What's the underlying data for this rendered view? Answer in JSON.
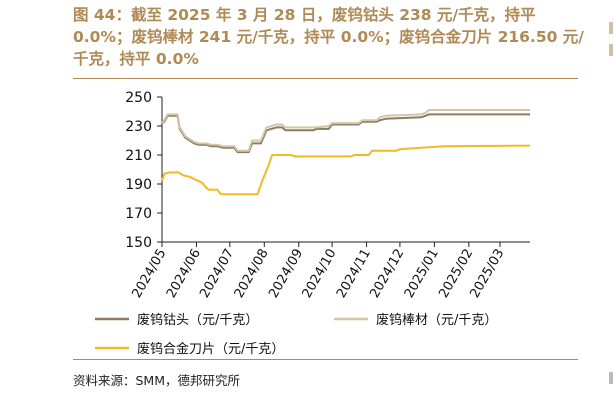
{
  "figure": {
    "title": "图 44：截至 2025 年 3 月 28 日，废钨钴头 238 元/千克，持平 0.0%；废钨棒材 241 元/千克，持平 0.0%；废钨合金刀片 216.50 元/千克，持平 0.0%",
    "source": "资料来源：SMM，德邦研究所"
  },
  "chart_data": {
    "type": "line",
    "title": "",
    "xlabel": "",
    "ylabel": "",
    "ylim": [
      150,
      250
    ],
    "yticks": [
      150,
      170,
      190,
      210,
      230,
      250
    ],
    "x_range": [
      "2024-05-01",
      "2025-03-28"
    ],
    "xtick_labels": [
      "2024/05",
      "2024/06",
      "2024/07",
      "2024/08",
      "2024/09",
      "2024/10",
      "2024/11",
      "2024/12",
      "2025/01",
      "2025/02",
      "2025/03"
    ],
    "xtick_dates": [
      "2024-05-01",
      "2024-06-01",
      "2024-07-01",
      "2024-08-01",
      "2024-09-01",
      "2024-10-01",
      "2024-11-01",
      "2024-12-01",
      "2025-01-01",
      "2025-02-01",
      "2025-03-01"
    ],
    "grid": false,
    "legend_position": "bottom",
    "series": [
      {
        "name": "废钨钴头（元/千克）",
        "color": "#8c7a63",
        "points": [
          [
            "2024-05-01",
            232
          ],
          [
            "2024-05-03",
            233
          ],
          [
            "2024-05-06",
            237
          ],
          [
            "2024-05-15",
            237
          ],
          [
            "2024-05-17",
            228
          ],
          [
            "2024-05-22",
            222
          ],
          [
            "2024-05-26",
            220
          ],
          [
            "2024-05-30",
            218
          ],
          [
            "2024-06-03",
            217
          ],
          [
            "2024-06-10",
            217
          ],
          [
            "2024-06-14",
            216
          ],
          [
            "2024-06-20",
            216
          ],
          [
            "2024-06-25",
            215
          ],
          [
            "2024-07-05",
            215
          ],
          [
            "2024-07-08",
            212
          ],
          [
            "2024-07-18",
            212
          ],
          [
            "2024-07-21",
            218
          ],
          [
            "2024-07-29",
            218
          ],
          [
            "2024-08-03",
            227
          ],
          [
            "2024-08-12",
            229
          ],
          [
            "2024-08-17",
            229
          ],
          [
            "2024-08-20",
            227
          ],
          [
            "2024-09-14",
            227
          ],
          [
            "2024-09-17",
            228
          ],
          [
            "2024-09-28",
            228
          ],
          [
            "2024-10-01",
            231
          ],
          [
            "2024-10-25",
            231
          ],
          [
            "2024-10-28",
            233
          ],
          [
            "2024-11-10",
            233
          ],
          [
            "2024-11-13",
            234
          ],
          [
            "2024-11-18",
            235
          ],
          [
            "2024-12-20",
            236
          ],
          [
            "2024-12-24",
            237
          ],
          [
            "2024-12-27",
            238
          ],
          [
            "2025-03-28",
            238
          ]
        ]
      },
      {
        "name": "废钨棒材（元/千克）",
        "color": "#d3c6a6",
        "points": [
          [
            "2024-05-01",
            232
          ],
          [
            "2024-05-03",
            234
          ],
          [
            "2024-05-06",
            238
          ],
          [
            "2024-05-15",
            238
          ],
          [
            "2024-05-17",
            229
          ],
          [
            "2024-05-22",
            223
          ],
          [
            "2024-05-26",
            221
          ],
          [
            "2024-05-30",
            219
          ],
          [
            "2024-06-03",
            218
          ],
          [
            "2024-06-10",
            218
          ],
          [
            "2024-06-14",
            217
          ],
          [
            "2024-06-20",
            217
          ],
          [
            "2024-06-25",
            216
          ],
          [
            "2024-07-05",
            216
          ],
          [
            "2024-07-08",
            213
          ],
          [
            "2024-07-18",
            213
          ],
          [
            "2024-07-21",
            220
          ],
          [
            "2024-07-29",
            220
          ],
          [
            "2024-08-03",
            229
          ],
          [
            "2024-08-12",
            231
          ],
          [
            "2024-08-17",
            231
          ],
          [
            "2024-08-20",
            229
          ],
          [
            "2024-09-14",
            229
          ],
          [
            "2024-09-17",
            229
          ],
          [
            "2024-09-28",
            230
          ],
          [
            "2024-10-01",
            232
          ],
          [
            "2024-10-25",
            232
          ],
          [
            "2024-10-28",
            234
          ],
          [
            "2024-11-10",
            234
          ],
          [
            "2024-11-13",
            236
          ],
          [
            "2024-11-18",
            237
          ],
          [
            "2024-12-20",
            238
          ],
          [
            "2024-12-24",
            239
          ],
          [
            "2024-12-27",
            241
          ],
          [
            "2025-03-28",
            241
          ]
        ]
      },
      {
        "name": "废钨合金刀片（元/千克）",
        "color": "#f3b825",
        "points": [
          [
            "2024-05-01",
            192
          ],
          [
            "2024-05-03",
            197
          ],
          [
            "2024-05-08",
            198
          ],
          [
            "2024-05-16",
            198
          ],
          [
            "2024-05-20",
            196
          ],
          [
            "2024-05-26",
            195
          ],
          [
            "2024-05-31",
            193
          ],
          [
            "2024-06-06",
            191
          ],
          [
            "2024-06-09",
            188
          ],
          [
            "2024-06-12",
            186
          ],
          [
            "2024-06-20",
            186
          ],
          [
            "2024-06-23",
            183
          ],
          [
            "2024-07-26",
            183
          ],
          [
            "2024-07-30",
            192
          ],
          [
            "2024-08-05",
            203
          ],
          [
            "2024-08-08",
            210
          ],
          [
            "2024-08-25",
            210
          ],
          [
            "2024-08-28",
            209
          ],
          [
            "2024-10-18",
            209
          ],
          [
            "2024-10-21",
            210
          ],
          [
            "2024-11-03",
            210
          ],
          [
            "2024-11-06",
            213
          ],
          [
            "2024-11-28",
            213
          ],
          [
            "2024-12-01",
            214
          ],
          [
            "2024-12-20",
            215
          ],
          [
            "2025-01-10",
            216
          ],
          [
            "2025-03-28",
            216.5
          ]
        ]
      }
    ]
  }
}
